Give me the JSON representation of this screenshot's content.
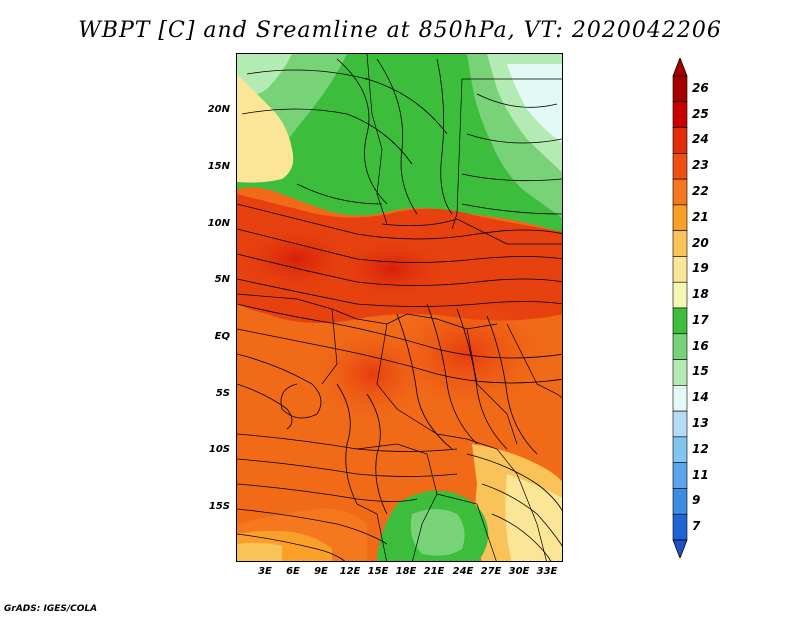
{
  "title": "WBPT [C] and Sreamline at 850hPa, VT: 2020042206",
  "credit": "GrADS: IGES/COLA",
  "latitude_labels": [
    "20N",
    "15N",
    "10N",
    "5N",
    "EQ",
    "5S",
    "10S",
    "15S"
  ],
  "longitude_labels": [
    "3E",
    "6E",
    "9E",
    "12E",
    "15E",
    "18E",
    "21E",
    "24E",
    "27E",
    "30E",
    "33E"
  ],
  "colorbar": {
    "levels": [
      {
        "label": "26",
        "color": "#a50000"
      },
      {
        "label": "25",
        "color": "#c80000"
      },
      {
        "label": "24",
        "color": "#e12d0a"
      },
      {
        "label": "23",
        "color": "#f05014"
      },
      {
        "label": "22",
        "color": "#f5781e"
      },
      {
        "label": "21",
        "color": "#faa028"
      },
      {
        "label": "20",
        "color": "#fac35a"
      },
      {
        "label": "19",
        "color": "#fae696"
      },
      {
        "label": "18",
        "color": "#f5f5b4"
      },
      {
        "label": "17",
        "color": "#3cbe3c"
      },
      {
        "label": "16",
        "color": "#78d278"
      },
      {
        "label": "15",
        "color": "#b4ebb4"
      },
      {
        "label": "14",
        "color": "#e1faf5"
      },
      {
        "label": "13",
        "color": "#b4dcf5"
      },
      {
        "label": "12",
        "color": "#82c3f0"
      },
      {
        "label": "11",
        "color": "#5aa5eb"
      },
      {
        "label": "9",
        "color": "#3c8ce1"
      },
      {
        "label": "7",
        "color": "#1e64d2"
      }
    ],
    "bottom_color": "#1e50c8",
    "top_color": "#a50000"
  }
}
